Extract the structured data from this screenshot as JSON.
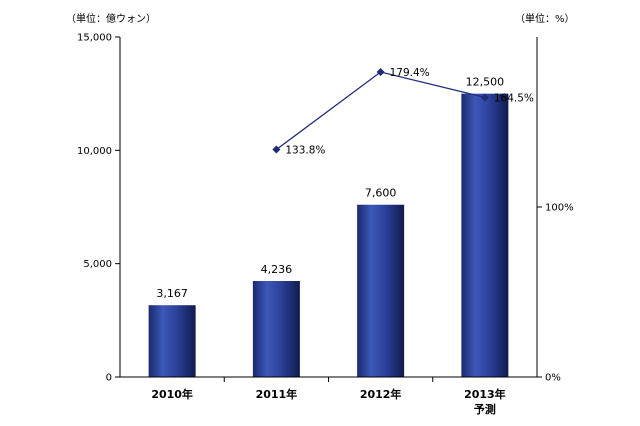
{
  "chart_data": {
    "type": "bar",
    "categories": [
      "2010年",
      "2011年",
      "2012年",
      "2013年"
    ],
    "category_sublabels": [
      "",
      "",
      "",
      "予測"
    ],
    "series": [
      {
        "values": [
          3167,
          4236,
          7600,
          12500
        ],
        "value_labels": [
          "3,167",
          "4,236",
          "7,600",
          "12,500"
        ],
        "axis": "left",
        "color": "#2a3f93"
      },
      {
        "type": "line",
        "values": [
          null,
          133.8,
          179.4,
          164.5
        ],
        "value_labels": [
          "",
          "133.8%",
          "179.4%",
          "164.5%"
        ],
        "axis": "right",
        "color": "#1f2a78"
      }
    ],
    "y_left": {
      "unit_label": "（単位：億ウォン）",
      "lim": [
        0,
        15000
      ],
      "ticks": [
        0,
        5000,
        10000,
        15000
      ],
      "tick_labels": [
        "0",
        "5,000",
        "10,000",
        "15,000"
      ]
    },
    "y_right": {
      "unit_label": "（単位：%）",
      "lim": [
        0,
        200
      ],
      "ticks": [
        0,
        100
      ],
      "tick_labels": [
        "0%",
        "100%"
      ]
    },
    "grid": false,
    "legend": "none"
  }
}
